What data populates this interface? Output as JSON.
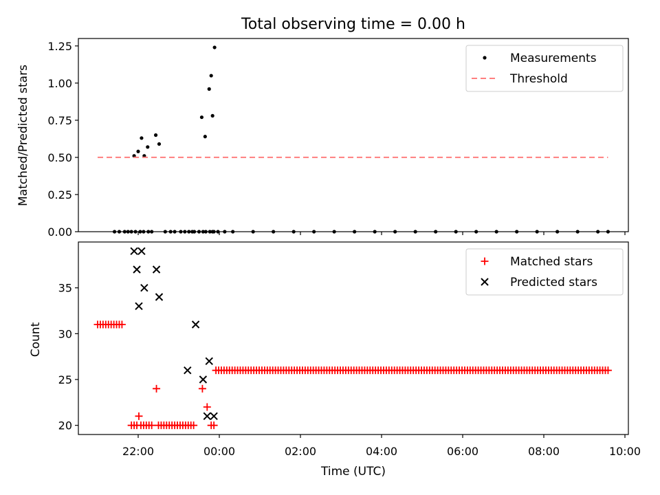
{
  "chart_data": {
    "type": "scatter",
    "title": "Total observing time = 0.00 h",
    "xlabel": "Time (UTC)",
    "x_tick_labels": [
      "22:00",
      "00:00",
      "02:00",
      "04:00",
      "06:00",
      "08:00",
      "10:00"
    ],
    "panels": [
      {
        "ylabel": "Matched/Predicted stars",
        "ylim": [
          0,
          1.3
        ],
        "yticks": [
          "0.00",
          "0.25",
          "0.50",
          "0.75",
          "1.00",
          "1.25"
        ],
        "legend_position": "upper right",
        "legend": [
          "Measurements",
          "Threshold"
        ],
        "series": [
          {
            "name": "Measurements",
            "marker": "dot",
            "color": "#000000",
            "x": [
              "21:25",
              "21:32",
              "21:40",
              "21:45",
              "21:50",
              "21:56",
              "22:03",
              "22:08",
              "22:15",
              "22:20",
              "22:40",
              "22:48",
              "22:54",
              "23:03",
              "23:09",
              "23:15",
              "23:20",
              "23:23",
              "23:30",
              "23:36",
              "23:40",
              "23:46",
              "23:50",
              "23:52",
              "23:58",
              "24:08",
              "24:20",
              "24:50",
              "25:20",
              "25:50",
              "26:20",
              "26:50",
              "27:20",
              "27:50",
              "28:20",
              "28:50",
              "29:20",
              "29:50",
              "30:20",
              "30:50",
              "31:20",
              "31:50",
              "32:20",
              "32:50",
              "33:20",
              "33:35",
              "21:54",
              "22:00",
              "22:05",
              "22:09",
              "22:14",
              "22:26",
              "22:31",
              "23:34",
              "23:39",
              "23:45",
              "23:48",
              "23:50",
              "23:53"
            ],
            "y": [
              0,
              0,
              0,
              0,
              0,
              0,
              0,
              0,
              0,
              0,
              0,
              0,
              0,
              0,
              0,
              0,
              0,
              0,
              0,
              0,
              0,
              0,
              0,
              0,
              0,
              0,
              0,
              0,
              0,
              0,
              0,
              0,
              0,
              0,
              0,
              0,
              0,
              0,
              0,
              0,
              0,
              0,
              0,
              0,
              0,
              0,
              0.51,
              0.54,
              0.63,
              0.51,
              0.57,
              0.65,
              0.59,
              0.77,
              0.64,
              0.96,
              1.05,
              0.78,
              1.24
            ]
          },
          {
            "name": "Threshold",
            "style": "dashed",
            "color": "#ff7f7f",
            "x": [
              "21:00",
              "33:35"
            ],
            "y": [
              0.5,
              0.5
            ]
          }
        ]
      },
      {
        "ylabel": "Count",
        "ylim": [
          19,
          40
        ],
        "yticks": [
          "20",
          "25",
          "30",
          "35"
        ],
        "legend_position": "upper right",
        "legend": [
          "Matched stars",
          "Predicted stars"
        ],
        "series": [
          {
            "name": "Matched stars",
            "marker": "plus",
            "color": "#ff0000",
            "segments": [
              {
                "start": "21:00",
                "end": "21:38",
                "step_min": 4,
                "value": 31
              },
              {
                "start": "21:50",
                "end": "21:58",
                "step_min": 4,
                "value": 20
              },
              {
                "start": "22:04",
                "end": "22:20",
                "step_min": 4,
                "value": 20
              },
              {
                "start": "22:30",
                "end": "23:25",
                "step_min": 4,
                "value": 20
              },
              {
                "start": "23:55",
                "end": "33:35",
                "step_min": 4,
                "value": 26
              }
            ],
            "points": [
              {
                "x": "22:01",
                "y": 21
              },
              {
                "x": "22:27",
                "y": 24
              },
              {
                "x": "23:35",
                "y": 24
              },
              {
                "x": "23:42",
                "y": 22
              },
              {
                "x": "23:48",
                "y": 20
              },
              {
                "x": "23:52",
                "y": 20
              }
            ]
          },
          {
            "name": "Predicted stars",
            "marker": "x",
            "color": "#000000",
            "points": [
              {
                "x": "21:54",
                "y": 39
              },
              {
                "x": "22:05",
                "y": 39
              },
              {
                "x": "21:58",
                "y": 37
              },
              {
                "x": "22:27",
                "y": 37
              },
              {
                "x": "22:09",
                "y": 35
              },
              {
                "x": "22:31",
                "y": 34
              },
              {
                "x": "22:01",
                "y": 33
              },
              {
                "x": "23:25",
                "y": 31
              },
              {
                "x": "23:13",
                "y": 26
              },
              {
                "x": "23:36",
                "y": 25
              },
              {
                "x": "23:45",
                "y": 27
              },
              {
                "x": "23:42",
                "y": 21
              },
              {
                "x": "23:52",
                "y": 21
              }
            ]
          }
        ]
      }
    ]
  }
}
